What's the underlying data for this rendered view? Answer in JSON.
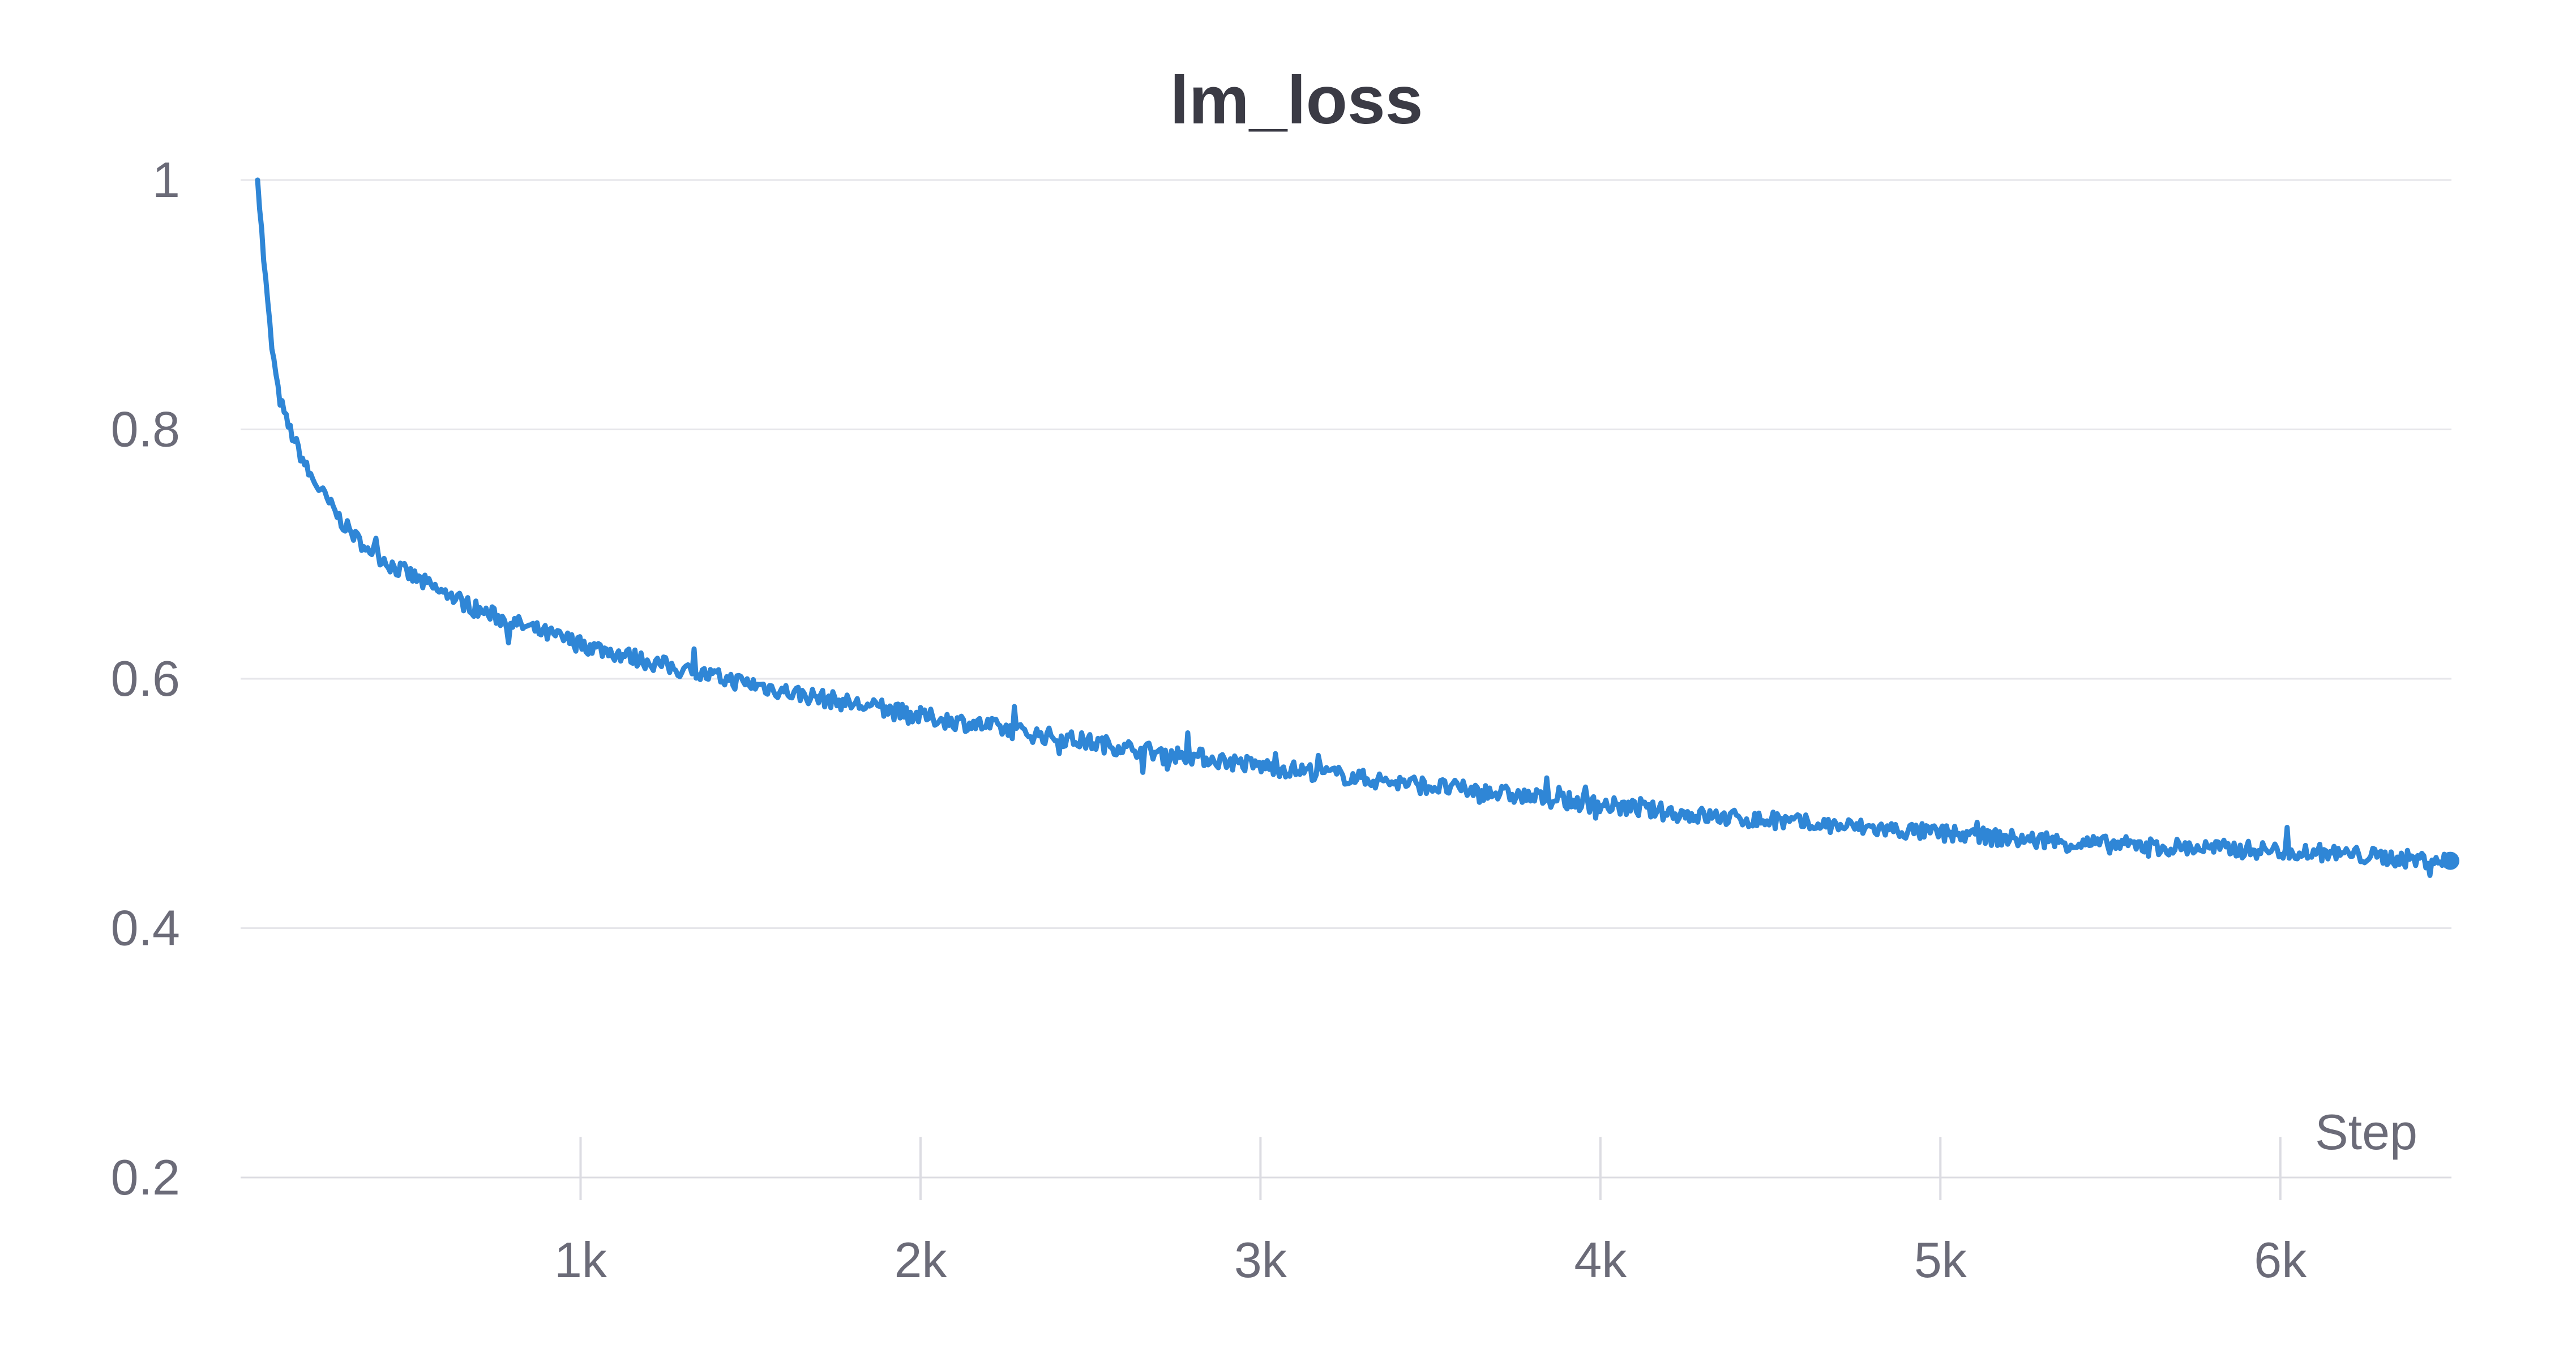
{
  "chart_data": {
    "type": "line",
    "title": "lm_loss",
    "xlabel": "Step",
    "ylabel": "",
    "xlim": [
      0,
      6500
    ],
    "ylim": [
      0.2,
      1.0
    ],
    "x_ticks": [
      1000,
      2000,
      3000,
      4000,
      5000,
      6000
    ],
    "x_tick_labels": [
      "1k",
      "2k",
      "3k",
      "4k",
      "5k",
      "6k"
    ],
    "y_ticks": [
      0.2,
      0.4,
      0.6,
      0.8,
      1.0
    ],
    "y_tick_labels": [
      "0.2",
      "0.4",
      "0.6",
      "0.8",
      "1"
    ],
    "grid": true,
    "legend": "none",
    "series": [
      {
        "color": "#2f86d6",
        "x": [
          50,
          70,
          90,
          110,
          130,
          160,
          200,
          250,
          300,
          350,
          400,
          450,
          500,
          550,
          600,
          650,
          700,
          800,
          900,
          1000,
          1100,
          1200,
          1300,
          1400,
          1500,
          1600,
          1700,
          1800,
          1900,
          2000,
          2100,
          2200,
          2300,
          2400,
          2500,
          2600,
          2700,
          2800,
          2900,
          3000,
          3100,
          3200,
          3300,
          3400,
          3500,
          3600,
          3700,
          3800,
          3900,
          4000,
          4100,
          4200,
          4300,
          4400,
          4500,
          4600,
          4700,
          4800,
          4900,
          5000,
          5100,
          5200,
          5300,
          5400,
          5500,
          5600,
          5700,
          5800,
          5900,
          6000,
          6100,
          6200,
          6300,
          6400,
          6500
        ],
        "y": [
          1.0,
          0.93,
          0.87,
          0.83,
          0.81,
          0.79,
          0.765,
          0.745,
          0.725,
          0.71,
          0.7,
          0.69,
          0.683,
          0.675,
          0.668,
          0.662,
          0.655,
          0.645,
          0.636,
          0.628,
          0.621,
          0.614,
          0.607,
          0.601,
          0.596,
          0.59,
          0.585,
          0.58,
          0.575,
          0.57,
          0.566,
          0.562,
          0.557,
          0.553,
          0.549,
          0.545,
          0.541,
          0.538,
          0.534,
          0.53,
          0.527,
          0.524,
          0.52,
          0.517,
          0.514,
          0.511,
          0.508,
          0.505,
          0.502,
          0.499,
          0.496,
          0.493,
          0.49,
          0.488,
          0.486,
          0.484,
          0.482,
          0.48,
          0.478,
          0.476,
          0.474,
          0.472,
          0.47,
          0.468,
          0.467,
          0.466,
          0.465,
          0.464,
          0.463,
          0.462,
          0.461,
          0.459,
          0.457,
          0.455,
          0.454
        ]
      }
    ]
  }
}
